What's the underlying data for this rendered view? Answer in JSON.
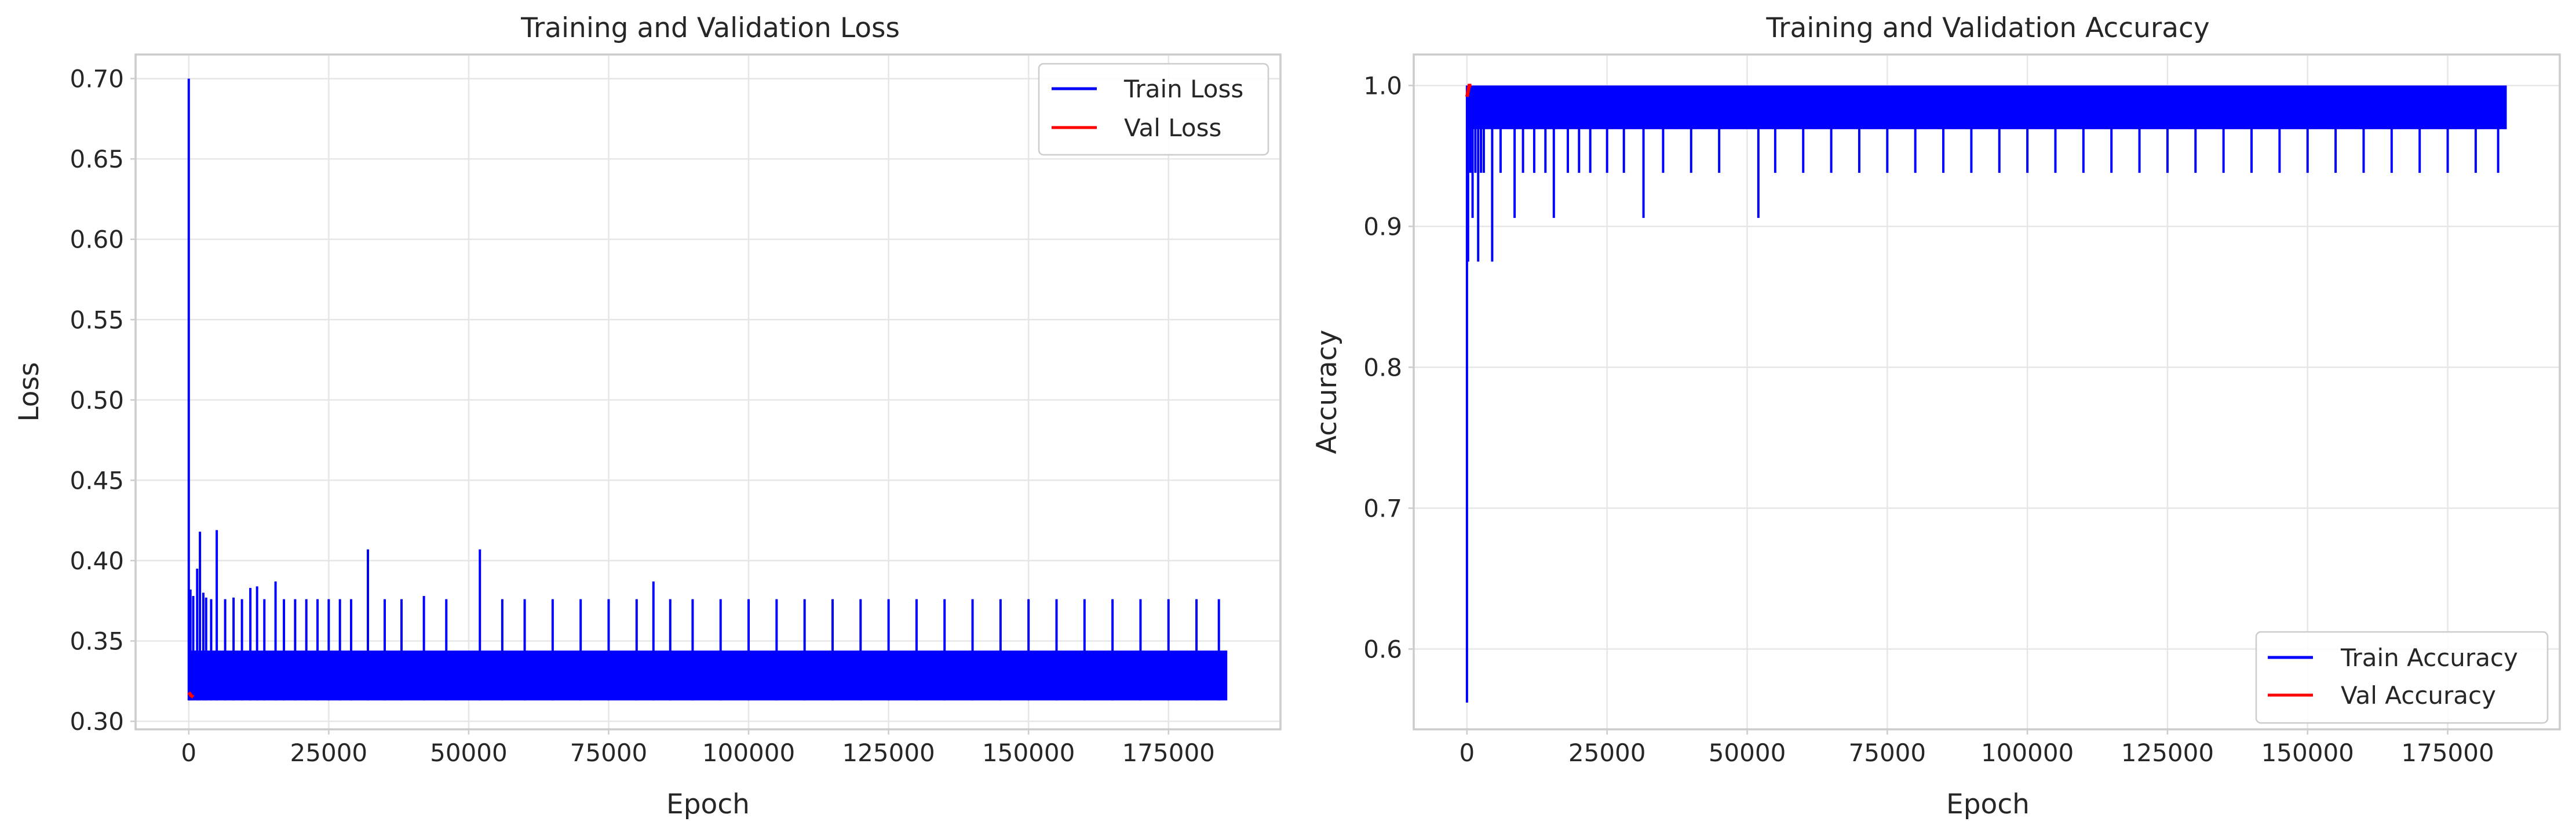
{
  "chart_data": [
    {
      "type": "line",
      "title": "Training and Validation Loss",
      "xlabel": "Epoch",
      "ylabel": "Loss",
      "xlim": [
        -9500,
        195000
      ],
      "ylim": [
        0.295,
        0.715
      ],
      "xticks": [
        0,
        25000,
        50000,
        75000,
        100000,
        125000,
        150000,
        175000
      ],
      "xtick_labels": [
        "0",
        "25000",
        "50000",
        "75000",
        "100000",
        "125000",
        "150000",
        "175000"
      ],
      "yticks": [
        0.3,
        0.35,
        0.4,
        0.45,
        0.5,
        0.55,
        0.6,
        0.65,
        0.7
      ],
      "ytick_labels": [
        "0.30",
        "0.35",
        "0.40",
        "0.45",
        "0.50",
        "0.55",
        "0.60",
        "0.65",
        "0.70"
      ],
      "grid": true,
      "legend_position": "top-right",
      "series": [
        {
          "name": "Train Loss",
          "color": "#0000ff",
          "x_range": [
            0,
            185500
          ],
          "band": [
            0.313,
            0.344
          ],
          "x": [
            0,
            300,
            800,
            1500,
            2000,
            2600,
            3100,
            4000,
            5000,
            6500,
            8000,
            9500,
            11000,
            12200,
            13500,
            15500,
            17000,
            19000,
            21000,
            23000,
            25000,
            27000,
            29000,
            32000,
            35000,
            38000,
            42000,
            46000,
            52000,
            56000,
            60000,
            65000,
            70000,
            75000,
            80000,
            83000,
            86000,
            90000,
            95000,
            100000,
            105000,
            110000,
            115000,
            120000,
            125000,
            130000,
            135000,
            140000,
            145000,
            150000,
            155000,
            160000,
            165000,
            170000,
            175000,
            180000,
            184000
          ],
          "y": [
            0.7,
            0.382,
            0.378,
            0.395,
            0.418,
            0.38,
            0.377,
            0.376,
            0.419,
            0.376,
            0.377,
            0.376,
            0.383,
            0.384,
            0.376,
            0.387,
            0.376,
            0.376,
            0.376,
            0.376,
            0.376,
            0.376,
            0.376,
            0.407,
            0.376,
            0.376,
            0.378,
            0.376,
            0.407,
            0.376,
            0.376,
            0.376,
            0.376,
            0.376,
            0.376,
            0.387,
            0.376,
            0.376,
            0.376,
            0.376,
            0.376,
            0.376,
            0.376,
            0.376,
            0.376,
            0.376,
            0.376,
            0.376,
            0.376,
            0.376,
            0.376,
            0.376,
            0.376,
            0.376,
            0.376,
            0.376,
            0.376
          ]
        },
        {
          "name": "Val Loss",
          "color": "#ff0000",
          "x": [
            0,
            400,
            800
          ],
          "y": [
            0.318,
            0.316,
            0.315
          ]
        }
      ]
    },
    {
      "type": "line",
      "title": "Training and Validation Accuracy",
      "xlabel": "Epoch",
      "ylabel": "Accuracy",
      "xlim": [
        -9500,
        195000
      ],
      "ylim": [
        0.543,
        1.022
      ],
      "xticks": [
        0,
        25000,
        50000,
        75000,
        100000,
        125000,
        150000,
        175000
      ],
      "xtick_labels": [
        "0",
        "25000",
        "50000",
        "75000",
        "100000",
        "125000",
        "150000",
        "175000"
      ],
      "yticks": [
        0.6,
        0.7,
        0.8,
        0.9,
        1.0
      ],
      "ytick_labels": [
        "0.6",
        "0.7",
        "0.8",
        "0.9",
        "1.0"
      ],
      "grid": true,
      "legend_position": "bottom-right",
      "series": [
        {
          "name": "Train Accuracy",
          "color": "#0000ff",
          "x_range": [
            0,
            185500
          ],
          "band": [
            0.969,
            1.0
          ],
          "x": [
            0,
            200,
            600,
            1000,
            1500,
            2000,
            2500,
            3000,
            4500,
            6000,
            8500,
            10000,
            12000,
            14000,
            15500,
            18000,
            20000,
            22000,
            25000,
            28000,
            31500,
            35000,
            40000,
            45000,
            52000,
            55000,
            60000,
            65000,
            70000,
            75000,
            80000,
            85000,
            90000,
            95000,
            100000,
            105000,
            110000,
            115000,
            120000,
            125000,
            130000,
            135000,
            140000,
            145000,
            150000,
            155000,
            160000,
            165000,
            170000,
            175000,
            180000,
            184000
          ],
          "y": [
            0.562,
            0.875,
            0.938,
            0.906,
            0.938,
            0.875,
            0.938,
            0.938,
            0.875,
            0.938,
            0.906,
            0.938,
            0.938,
            0.938,
            0.906,
            0.938,
            0.938,
            0.938,
            0.938,
            0.938,
            0.906,
            0.938,
            0.938,
            0.938,
            0.906,
            0.938,
            0.938,
            0.938,
            0.938,
            0.938,
            0.938,
            0.938,
            0.938,
            0.938,
            0.938,
            0.938,
            0.938,
            0.938,
            0.938,
            0.938,
            0.938,
            0.938,
            0.938,
            0.938,
            0.938,
            0.938,
            0.938,
            0.938,
            0.938,
            0.938,
            0.938,
            0.938
          ]
        },
        {
          "name": "Val Accuracy",
          "color": "#ff0000",
          "x": [
            0,
            400,
            800
          ],
          "y": [
            0.992,
            1.0,
            1.0
          ]
        }
      ]
    }
  ]
}
